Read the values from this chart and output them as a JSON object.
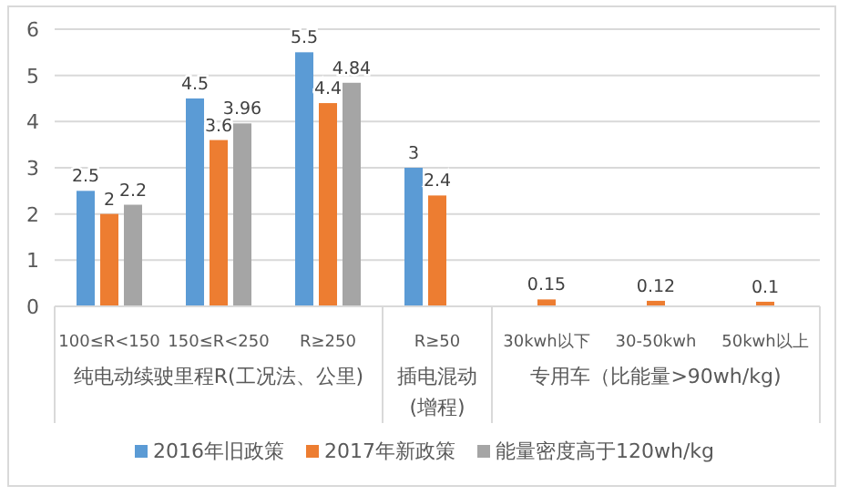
{
  "chart_data": {
    "type": "bar",
    "categories": [
      "100≤R<150",
      "150≤R<250",
      "R≥250",
      "R≥50",
      "30kwh以下",
      "30-50kwh",
      "50kwh以上"
    ],
    "series": [
      {
        "name": "2016年旧政策",
        "color": "#5b9bd5",
        "values": [
          2.5,
          4.5,
          5.5,
          3,
          null,
          null,
          null
        ]
      },
      {
        "name": "2017年新政策",
        "color": "#ed7d31",
        "values": [
          2,
          3.6,
          4.4,
          2.4,
          0.15,
          0.12,
          0.1
        ]
      },
      {
        "name": "能量密度高于120wh/kg",
        "color": "#a5a5a5",
        "values": [
          2.2,
          3.96,
          4.84,
          null,
          null,
          null,
          null
        ]
      }
    ],
    "annotations": [
      "纯电动续驶里程R(工况法、公里)",
      "插电混动(增程)",
      "专用车（比能量>90wh/kg)"
    ],
    "ylim": [
      0,
      6
    ],
    "yticks": [
      0,
      1,
      2,
      3,
      4,
      5,
      6
    ],
    "grid": "y",
    "legend": "bottom",
    "data_labels": true
  }
}
